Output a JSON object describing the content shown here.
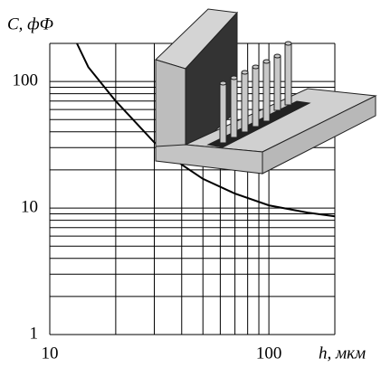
{
  "chart_data": {
    "type": "line",
    "x_label": "h, мкм",
    "y_label": "C, фФ",
    "x": [
      13.3,
      15,
      20,
      30,
      40,
      50,
      70,
      100,
      150,
      200
    ],
    "series": [
      {
        "color": "#000000",
        "values": [
          200,
          130,
          70,
          33,
          22,
          17,
          13,
          10.5,
          9.2,
          8.6
        ]
      }
    ],
    "xlim": [
      10,
      200
    ],
    "ylim": [
      1,
      200
    ],
    "xticks": [
      10,
      100
    ],
    "yticks": [
      1,
      10,
      100
    ],
    "xminor": [
      20,
      30,
      40,
      50,
      60,
      70,
      80,
      90,
      200
    ],
    "yminor": [
      2,
      3,
      4,
      5,
      6,
      7,
      8,
      9,
      20,
      30,
      40,
      50,
      60,
      70,
      80,
      90,
      200
    ],
    "log_x": true,
    "log_y": true,
    "grid": true
  }
}
